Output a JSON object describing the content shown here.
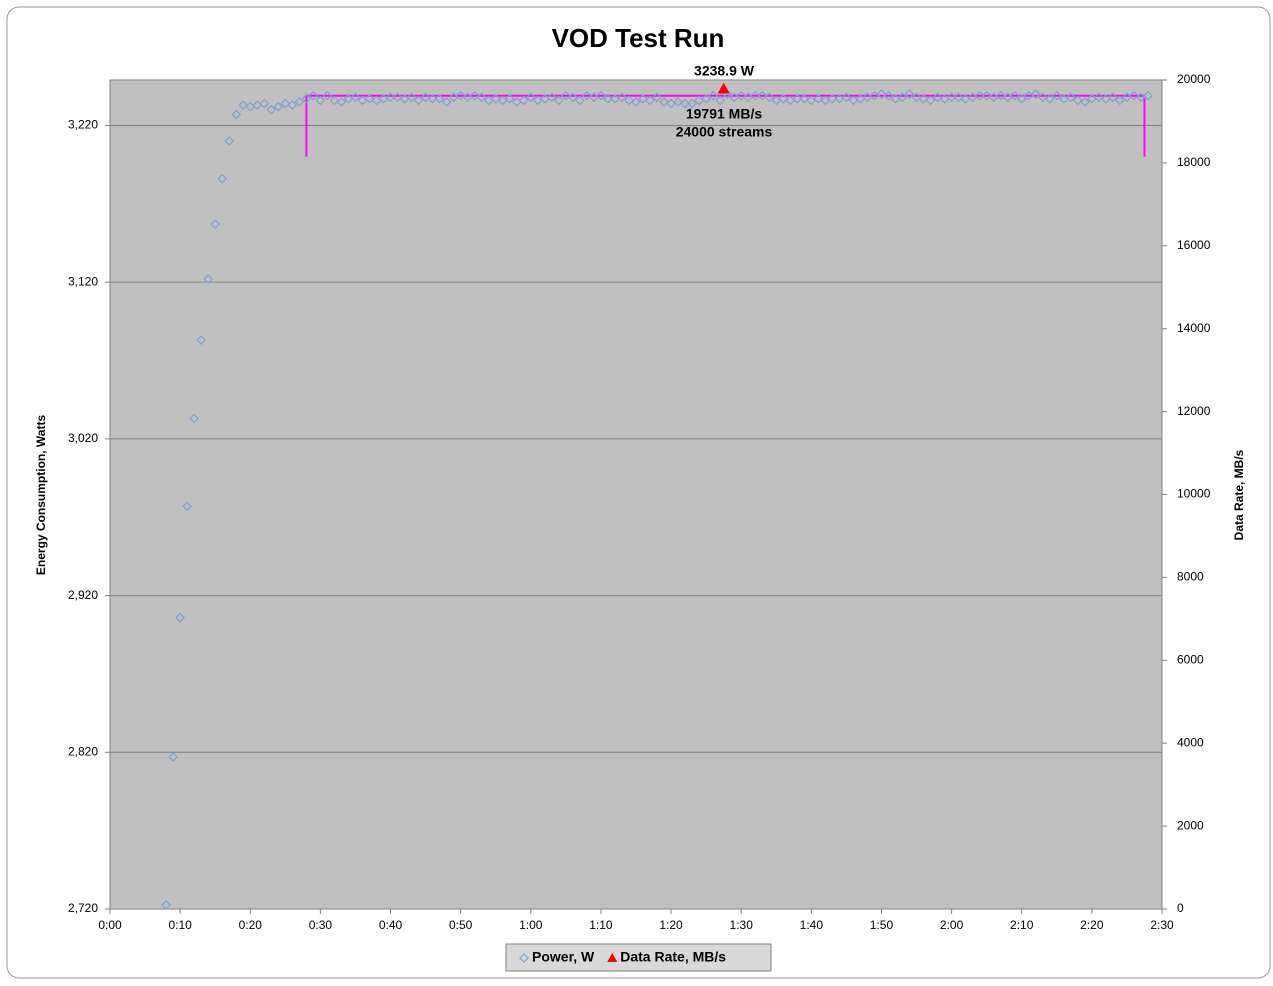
{
  "chart_data": {
    "type": "scatter",
    "title": "VOD Test Run",
    "y_label": "Energy Consumption, Watts",
    "y2_label": "Data Rate, MB/s",
    "xlim": [
      0,
      150
    ],
    "xticks": [
      {
        "value": 0,
        "label": "0:00"
      },
      {
        "value": 10,
        "label": "0:10"
      },
      {
        "value": 20,
        "label": "0:20"
      },
      {
        "value": 30,
        "label": "0:30"
      },
      {
        "value": 40,
        "label": "0:40"
      },
      {
        "value": 50,
        "label": "0:50"
      },
      {
        "value": 60,
        "label": "1:00"
      },
      {
        "value": 70,
        "label": "1:10"
      },
      {
        "value": 80,
        "label": "1:20"
      },
      {
        "value": 90,
        "label": "1:30"
      },
      {
        "value": 100,
        "label": "1:40"
      },
      {
        "value": 110,
        "label": "1:50"
      },
      {
        "value": 120,
        "label": "2:00"
      },
      {
        "value": 130,
        "label": "2:10"
      },
      {
        "value": 140,
        "label": "2:20"
      },
      {
        "value": 150,
        "label": "2:30"
      }
    ],
    "ylim": [
      2720,
      3249
    ],
    "yticks": [
      {
        "value": 2720,
        "label": "2,720"
      },
      {
        "value": 2820,
        "label": "2,820"
      },
      {
        "value": 2920,
        "label": "2,920"
      },
      {
        "value": 3020,
        "label": "3,020"
      },
      {
        "value": 3120,
        "label": "3,120"
      },
      {
        "value": 3220,
        "label": "3,220"
      }
    ],
    "y2lim": [
      0,
      20000
    ],
    "y2ticks": [
      0,
      2000,
      4000,
      6000,
      8000,
      10000,
      12000,
      14000,
      16000,
      18000,
      20000
    ],
    "grid": true,
    "legend": "bottom",
    "series": [
      {
        "name": "Power, W",
        "color": "#7f9fcf",
        "marker": "diamond",
        "x": [
          8,
          9,
          10,
          11,
          12,
          13,
          14,
          15,
          16,
          17,
          18,
          19,
          20,
          21,
          22,
          23,
          24,
          25,
          26,
          27,
          28,
          29,
          30,
          31,
          32,
          33,
          34,
          35,
          36,
          37,
          38,
          39,
          40,
          41,
          42,
          43,
          44,
          45,
          46,
          47,
          48,
          49,
          50,
          51,
          52,
          53,
          54,
          55,
          56,
          57,
          58,
          59,
          60,
          61,
          62,
          63,
          64,
          65,
          66,
          67,
          68,
          69,
          70,
          71,
          72,
          73,
          74,
          75,
          76,
          77,
          78,
          79,
          80,
          81,
          82,
          83,
          84,
          85,
          86,
          87,
          88,
          89,
          90,
          91,
          92,
          93,
          94,
          95,
          96,
          97,
          98,
          99,
          100,
          101,
          102,
          103,
          104,
          105,
          106,
          107,
          108,
          109,
          110,
          111,
          112,
          113,
          114,
          115,
          116,
          117,
          118,
          119,
          120,
          121,
          122,
          123,
          124,
          125,
          126,
          127,
          128,
          129,
          130,
          131,
          132,
          133,
          134,
          135,
          136,
          137,
          138,
          139,
          140,
          141,
          142,
          143,
          144,
          145,
          146,
          147,
          148
        ],
        "values": [
          2722.6,
          2817,
          2906,
          2977,
          3033,
          3083,
          3122,
          3157,
          3186,
          3210,
          3227,
          3233,
          3232,
          3233,
          3234,
          3230,
          3232,
          3234,
          3233,
          3235,
          3237,
          3239,
          3236,
          3239,
          3236,
          3235,
          3237,
          3238,
          3236,
          3237,
          3236,
          3237,
          3238,
          3238,
          3237,
          3238,
          3236,
          3238,
          3237,
          3237,
          3235,
          3238,
          3239,
          3238,
          3239,
          3238,
          3236,
          3237,
          3236,
          3237,
          3235,
          3236,
          3238,
          3236,
          3237,
          3238,
          3236,
          3239,
          3238,
          3236,
          3239,
          3238,
          3239,
          3237,
          3237,
          3238,
          3236,
          3235,
          3237,
          3236,
          3238,
          3235,
          3234,
          3235,
          3234,
          3234,
          3236,
          3237,
          3239,
          3236,
          3240,
          3238,
          3239,
          3238,
          3239,
          3239,
          3238,
          3236,
          3237,
          3236,
          3237,
          3237,
          3236,
          3237,
          3236,
          3237,
          3237,
          3238,
          3236,
          3237,
          3238,
          3239,
          3240,
          3239,
          3237,
          3238,
          3240,
          3238,
          3237,
          3236,
          3238,
          3237,
          3238,
          3238,
          3237,
          3238,
          3239,
          3239,
          3238,
          3239,
          3238,
          3239,
          3237,
          3239,
          3240,
          3238,
          3237,
          3239,
          3237,
          3238,
          3236,
          3235,
          3237,
          3238,
          3237,
          3238,
          3236,
          3238,
          3239,
          3238,
          3239
        ]
      },
      {
        "name": "Data Rate, MB/s",
        "color": "#ff0000",
        "marker": "triangle",
        "axis": "y2",
        "x": [
          87.5
        ],
        "values": [
          19791
        ]
      }
    ],
    "bracket": {
      "color": "#ff00ff",
      "axis": "y2",
      "x": [
        28,
        147.5
      ],
      "values": [
        18150,
        19620
      ]
    },
    "annotations": [
      "3238.9 W",
      "19791 MB/s",
      "24000 streams"
    ]
  }
}
